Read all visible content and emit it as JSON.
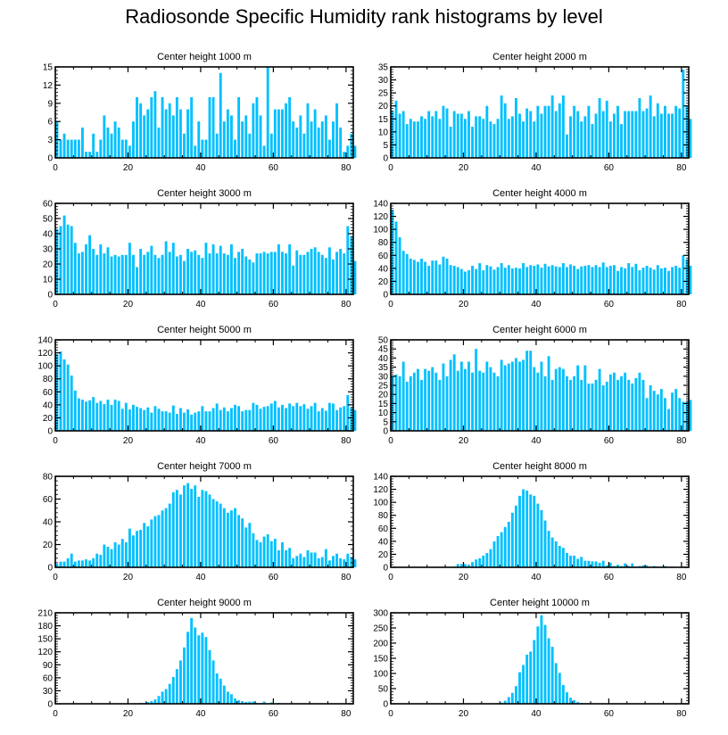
{
  "title": "Radiosonde Specific Humidity rank histograms by level",
  "bar_color": "#00c0ff",
  "chart_data": [
    {
      "type": "bar",
      "title": "Center height 1000 m",
      "x_ticks": [
        0,
        20,
        40,
        60,
        80
      ],
      "xlim": [
        0,
        82
      ],
      "y_ticks": [
        0,
        3,
        6,
        9,
        12,
        15
      ],
      "ylim": [
        0,
        15
      ],
      "values": [
        6,
        3,
        4,
        3,
        3,
        3,
        3,
        5,
        1,
        1,
        4,
        1,
        3,
        7,
        5,
        4,
        6,
        5,
        3,
        3,
        2,
        6,
        10,
        9,
        7,
        8,
        10,
        11,
        5,
        10,
        8,
        9,
        7,
        10,
        8,
        4,
        8,
        10,
        2,
        6,
        3,
        3,
        10,
        10,
        4,
        14,
        6,
        8,
        7,
        3,
        10,
        6,
        7,
        4,
        9,
        10,
        7,
        2,
        15,
        4,
        8,
        8,
        8,
        9,
        10,
        6,
        5,
        7,
        4,
        9,
        6,
        8,
        5,
        6,
        7,
        3,
        6,
        9,
        5,
        1,
        2,
        4,
        2
      ]
    },
    {
      "type": "bar",
      "title": "Center height 2000 m",
      "x_ticks": [
        0,
        20,
        40,
        60,
        80
      ],
      "xlim": [
        0,
        82
      ],
      "y_ticks": [
        0,
        5,
        10,
        15,
        20,
        25,
        30,
        35
      ],
      "ylim": [
        0,
        35
      ],
      "values": [
        18,
        22,
        17,
        18,
        13,
        15,
        14,
        14,
        16,
        15,
        18,
        16,
        18,
        15,
        20,
        19,
        12,
        18,
        17,
        17,
        15,
        18,
        12,
        16,
        16,
        15,
        20,
        14,
        13,
        15,
        24,
        21,
        15,
        16,
        23,
        17,
        14,
        19,
        18,
        14,
        20,
        17,
        20,
        20,
        24,
        18,
        21,
        24,
        9,
        16,
        20,
        18,
        14,
        16,
        20,
        13,
        17,
        23,
        18,
        22,
        14,
        17,
        20,
        13,
        18,
        18,
        18,
        18,
        23,
        18,
        19,
        24,
        16,
        21,
        17,
        20,
        17,
        17,
        20,
        19,
        34,
        20,
        15
      ]
    },
    {
      "type": "bar",
      "title": "Center height 3000 m",
      "x_ticks": [
        0,
        20,
        40,
        60,
        80
      ],
      "xlim": [
        0,
        82
      ],
      "y_ticks": [
        0,
        10,
        20,
        30,
        40,
        50,
        60
      ],
      "ylim": [
        0,
        60
      ],
      "values": [
        43,
        45,
        52,
        46,
        45,
        34,
        27,
        28,
        33,
        39,
        30,
        26,
        33,
        27,
        31,
        25,
        26,
        25,
        26,
        26,
        34,
        26,
        18,
        30,
        26,
        28,
        32,
        26,
        24,
        26,
        35,
        28,
        34,
        25,
        26,
        22,
        30,
        28,
        29,
        26,
        24,
        34,
        27,
        33,
        27,
        32,
        27,
        26,
        33,
        24,
        28,
        30,
        25,
        23,
        21,
        27,
        27,
        28,
        27,
        28,
        28,
        33,
        28,
        27,
        33,
        19,
        29,
        26,
        26,
        28,
        30,
        31,
        28,
        26,
        24,
        31,
        23,
        28,
        30,
        27,
        45,
        38,
        22
      ]
    },
    {
      "type": "bar",
      "title": "Center height 4000 m",
      "x_ticks": [
        0,
        20,
        40,
        60,
        80
      ],
      "xlim": [
        0,
        82
      ],
      "y_ticks": [
        0,
        20,
        40,
        60,
        80,
        100,
        120,
        140
      ],
      "ylim": [
        0,
        140
      ],
      "values": [
        130,
        112,
        88,
        67,
        62,
        55,
        53,
        50,
        55,
        50,
        44,
        52,
        52,
        46,
        58,
        55,
        45,
        44,
        42,
        39,
        35,
        37,
        44,
        39,
        48,
        37,
        45,
        43,
        38,
        42,
        48,
        41,
        45,
        40,
        41,
        40,
        48,
        42,
        45,
        44,
        46,
        41,
        47,
        43,
        45,
        43,
        42,
        48,
        42,
        46,
        44,
        39,
        43,
        44,
        45,
        42,
        45,
        42,
        49,
        42,
        44,
        45,
        36,
        42,
        40,
        48,
        42,
        47,
        37,
        41,
        44,
        41,
        38,
        45,
        40,
        41,
        36,
        42,
        44,
        41,
        60,
        54,
        44
      ]
    },
    {
      "type": "bar",
      "title": "Center height 5000 m",
      "x_ticks": [
        0,
        20,
        40,
        60,
        80
      ],
      "xlim": [
        0,
        82
      ],
      "y_ticks": [
        0,
        20,
        40,
        60,
        80,
        100,
        120,
        140
      ],
      "ylim": [
        0,
        140
      ],
      "values": [
        118,
        122,
        110,
        102,
        85,
        62,
        50,
        48,
        45,
        47,
        52,
        43,
        46,
        41,
        48,
        40,
        48,
        46,
        34,
        43,
        33,
        40,
        37,
        35,
        32,
        36,
        28,
        38,
        34,
        30,
        30,
        28,
        39,
        26,
        35,
        28,
        33,
        25,
        28,
        30,
        38,
        30,
        30,
        35,
        42,
        32,
        36,
        30,
        35,
        40,
        38,
        30,
        32,
        32,
        43,
        40,
        34,
        37,
        38,
        42,
        46,
        36,
        40,
        35,
        42,
        38,
        43,
        38,
        41,
        34,
        38,
        43,
        30,
        35,
        31,
        43,
        42,
        32,
        36,
        38,
        55,
        36,
        32
      ]
    },
    {
      "type": "bar",
      "title": "Center height 6000 m",
      "x_ticks": [
        0,
        20,
        40,
        60,
        80
      ],
      "xlim": [
        0,
        82
      ],
      "y_ticks": [
        0,
        5,
        10,
        15,
        20,
        25,
        30,
        35,
        40,
        45,
        50
      ],
      "ylim": [
        0,
        50
      ],
      "values": [
        30,
        31,
        30,
        38,
        27,
        30,
        32,
        34,
        28,
        34,
        33,
        35,
        32,
        28,
        37,
        30,
        39,
        42,
        33,
        38,
        34,
        38,
        32,
        45,
        33,
        32,
        38,
        35,
        32,
        30,
        39,
        36,
        37,
        38,
        40,
        38,
        39,
        44,
        44,
        35,
        32,
        38,
        30,
        41,
        28,
        34,
        35,
        34,
        30,
        28,
        30,
        36,
        28,
        36,
        26,
        26,
        28,
        34,
        25,
        27,
        31,
        32,
        28,
        30,
        32,
        28,
        26,
        29,
        32,
        28,
        18,
        25,
        22,
        20,
        23,
        18,
        12,
        21,
        23,
        18,
        16,
        16,
        17
      ]
    },
    {
      "type": "bar",
      "title": "Center height 7000 m",
      "x_ticks": [
        0,
        20,
        40,
        60,
        80
      ],
      "xlim": [
        0,
        82
      ],
      "y_ticks": [
        0,
        20,
        40,
        60,
        80
      ],
      "ylim": [
        0,
        80
      ],
      "values": [
        3,
        5,
        5,
        8,
        12,
        5,
        6,
        6,
        7,
        6,
        8,
        12,
        11,
        20,
        18,
        16,
        22,
        20,
        25,
        22,
        34,
        28,
        32,
        33,
        39,
        36,
        42,
        45,
        46,
        50,
        52,
        56,
        66,
        68,
        64,
        72,
        74,
        69,
        72,
        62,
        68,
        67,
        64,
        60,
        58,
        56,
        52,
        48,
        50,
        52,
        46,
        43,
        35,
        39,
        30,
        24,
        22,
        27,
        29,
        23,
        25,
        15,
        22,
        15,
        17,
        8,
        10,
        12,
        9,
        15,
        13,
        13,
        8,
        9,
        16,
        6,
        10,
        12,
        8,
        7,
        12,
        9,
        7
      ]
    },
    {
      "type": "bar",
      "title": "Center height 8000 m",
      "x_ticks": [
        0,
        20,
        40,
        60,
        80
      ],
      "xlim": [
        0,
        82
      ],
      "y_ticks": [
        0,
        20,
        40,
        60,
        80,
        100,
        120,
        140
      ],
      "ylim": [
        0,
        140
      ],
      "values": [
        0,
        0,
        0,
        0,
        0,
        0,
        0,
        0,
        0,
        0,
        0,
        0,
        0,
        0,
        0,
        0,
        0,
        1,
        5,
        5,
        5,
        4,
        8,
        12,
        14,
        18,
        22,
        28,
        40,
        48,
        54,
        62,
        70,
        84,
        95,
        110,
        120,
        118,
        112,
        110,
        98,
        88,
        72,
        56,
        46,
        40,
        33,
        30,
        22,
        18,
        18,
        13,
        16,
        10,
        10,
        9,
        9,
        7,
        10,
        3,
        7,
        2,
        4,
        2,
        6,
        2,
        6,
        1,
        2,
        3,
        3,
        1,
        2,
        1,
        1,
        2,
        0,
        1,
        0,
        0,
        1,
        0,
        0
      ]
    },
    {
      "type": "bar",
      "title": "Center height 9000 m",
      "x_ticks": [
        0,
        20,
        40,
        60,
        80
      ],
      "xlim": [
        0,
        82
      ],
      "y_ticks": [
        0,
        30,
        60,
        90,
        120,
        150,
        180,
        210
      ],
      "ylim": [
        0,
        210
      ],
      "values": [
        0,
        0,
        0,
        0,
        0,
        0,
        0,
        0,
        0,
        0,
        0,
        0,
        0,
        0,
        0,
        0,
        0,
        0,
        0,
        0,
        0,
        0,
        1,
        2,
        2,
        4,
        6,
        10,
        18,
        28,
        34,
        46,
        62,
        80,
        100,
        130,
        166,
        198,
        176,
        158,
        164,
        154,
        124,
        100,
        70,
        58,
        42,
        28,
        22,
        12,
        8,
        6,
        4,
        5,
        5,
        2,
        2,
        5,
        1,
        3,
        1,
        2,
        1,
        0,
        0,
        0,
        0,
        0,
        0,
        0,
        0,
        0,
        0,
        0,
        0,
        0,
        0,
        0,
        0,
        0,
        0,
        0,
        0
      ]
    },
    {
      "type": "bar",
      "title": "Center height 10000 m",
      "x_ticks": [
        0,
        20,
        40,
        60,
        80
      ],
      "xlim": [
        0,
        82
      ],
      "y_ticks": [
        0,
        50,
        100,
        150,
        200,
        250,
        300
      ],
      "ylim": [
        0,
        300
      ],
      "values": [
        0,
        0,
        0,
        0,
        0,
        0,
        0,
        0,
        0,
        0,
        0,
        0,
        0,
        0,
        0,
        0,
        0,
        0,
        0,
        0,
        0,
        0,
        0,
        0,
        0,
        0,
        0,
        0,
        1,
        2,
        4,
        10,
        22,
        36,
        58,
        104,
        128,
        162,
        172,
        210,
        255,
        292,
        260,
        216,
        188,
        134,
        102,
        62,
        38,
        20,
        12,
        6,
        3,
        2,
        2,
        1,
        1,
        0,
        0,
        0,
        0,
        0,
        0,
        0,
        0,
        0,
        0,
        0,
        0,
        0,
        0,
        0,
        0,
        0,
        0,
        0,
        0,
        0,
        0,
        0,
        0,
        0,
        0
      ]
    }
  ]
}
